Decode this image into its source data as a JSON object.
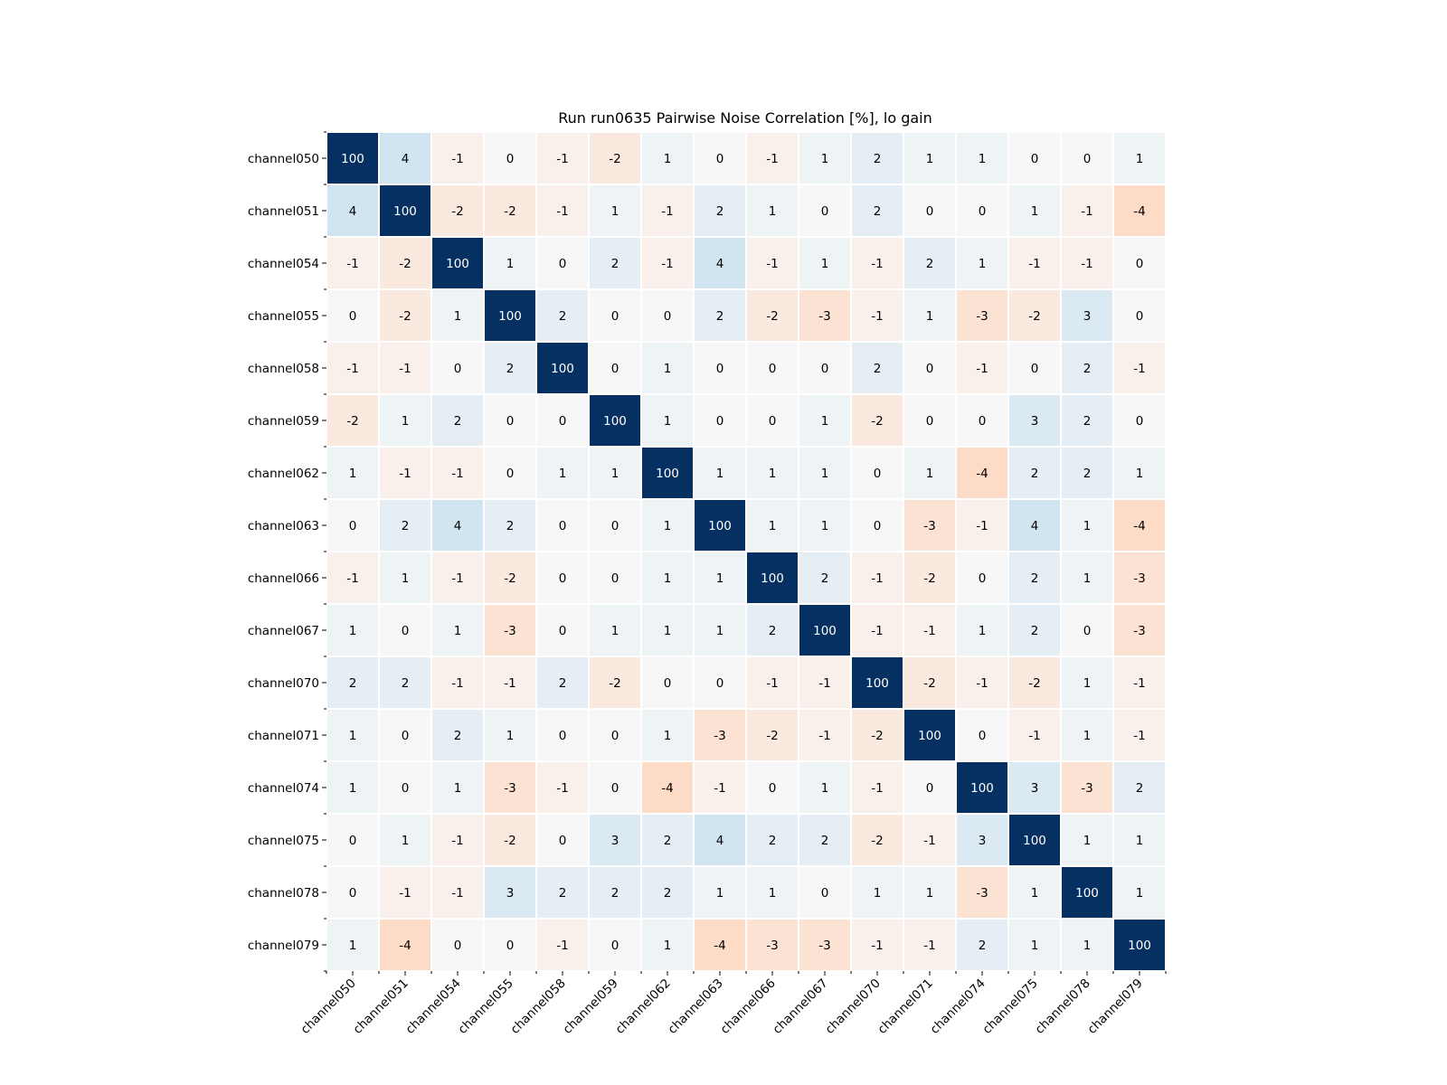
{
  "chart_data": {
    "type": "heatmap",
    "title": "Run run0635 Pairwise Noise Correlation [%], lo gain",
    "x_labels": [
      "channel050",
      "channel051",
      "channel054",
      "channel055",
      "channel058",
      "channel059",
      "channel062",
      "channel063",
      "channel066",
      "channel067",
      "channel070",
      "channel071",
      "channel074",
      "channel075",
      "channel078",
      "channel079"
    ],
    "y_labels": [
      "channel050",
      "channel051",
      "channel054",
      "channel055",
      "channel058",
      "channel059",
      "channel062",
      "channel063",
      "channel066",
      "channel067",
      "channel070",
      "channel071",
      "channel074",
      "channel075",
      "channel078",
      "channel079"
    ],
    "values": [
      [
        100,
        4,
        -1,
        0,
        -1,
        -2,
        1,
        0,
        -1,
        1,
        2,
        1,
        1,
        0,
        0,
        1
      ],
      [
        4,
        100,
        -2,
        -2,
        -1,
        1,
        -1,
        2,
        1,
        0,
        2,
        0,
        0,
        1,
        -1,
        -4
      ],
      [
        -1,
        -2,
        100,
        1,
        0,
        2,
        -1,
        4,
        -1,
        1,
        -1,
        2,
        1,
        -1,
        -1,
        0
      ],
      [
        0,
        -2,
        1,
        100,
        2,
        0,
        0,
        2,
        -2,
        -3,
        -1,
        1,
        -3,
        -2,
        3,
        0
      ],
      [
        -1,
        -1,
        0,
        2,
        100,
        0,
        1,
        0,
        0,
        0,
        2,
        0,
        -1,
        0,
        2,
        -1
      ],
      [
        -2,
        1,
        2,
        0,
        0,
        100,
        1,
        0,
        0,
        1,
        -2,
        0,
        0,
        3,
        2,
        0
      ],
      [
        1,
        -1,
        -1,
        0,
        1,
        1,
        100,
        1,
        1,
        1,
        0,
        1,
        -4,
        2,
        2,
        1
      ],
      [
        0,
        2,
        4,
        2,
        0,
        0,
        1,
        100,
        1,
        1,
        0,
        -3,
        -1,
        4,
        1,
        -4
      ],
      [
        -1,
        1,
        -1,
        -2,
        0,
        0,
        1,
        1,
        100,
        2,
        -1,
        -2,
        0,
        2,
        1,
        -3
      ],
      [
        1,
        0,
        1,
        -3,
        0,
        1,
        1,
        1,
        2,
        100,
        -1,
        -1,
        1,
        2,
        0,
        -3
      ],
      [
        2,
        2,
        -1,
        -1,
        2,
        -2,
        0,
        0,
        -1,
        -1,
        100,
        -2,
        -1,
        -2,
        1,
        -1
      ],
      [
        1,
        0,
        2,
        1,
        0,
        0,
        1,
        -3,
        -2,
        -1,
        -2,
        100,
        0,
        -1,
        1,
        -1
      ],
      [
        1,
        0,
        1,
        -3,
        -1,
        0,
        -4,
        -1,
        0,
        1,
        -1,
        0,
        100,
        3,
        -3,
        2
      ],
      [
        0,
        1,
        -1,
        -2,
        0,
        3,
        2,
        4,
        2,
        2,
        -2,
        -1,
        3,
        100,
        1,
        1
      ],
      [
        0,
        -1,
        -1,
        3,
        2,
        2,
        2,
        1,
        1,
        0,
        1,
        1,
        -3,
        1,
        100,
        1
      ],
      [
        1,
        -4,
        0,
        0,
        -1,
        0,
        1,
        -4,
        -3,
        -3,
        -1,
        -1,
        2,
        1,
        1,
        100
      ]
    ],
    "colormap": "diverging red-white-blue",
    "vmin": -100,
    "vmax": 100,
    "colors": {
      "max": "#053061",
      "neutral": "#f7f7f7",
      "min": "#67001f",
      "text_light": "#ffffff",
      "text_dark": "#000000"
    },
    "xlabel": "",
    "ylabel": "",
    "grid": false,
    "legend": "none"
  }
}
